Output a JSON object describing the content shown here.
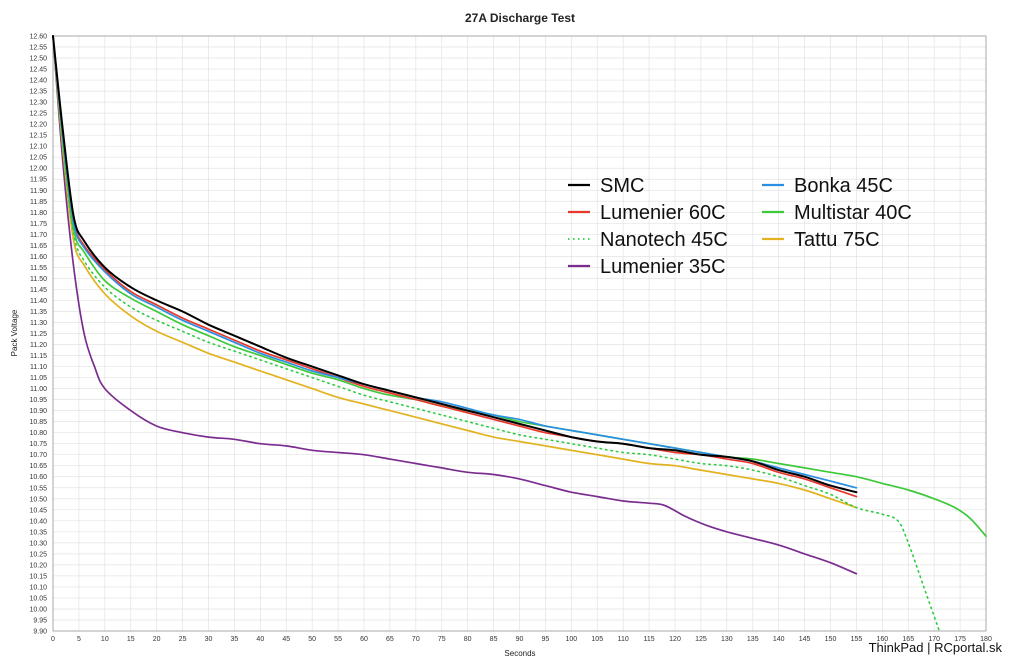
{
  "chart_data": {
    "type": "line",
    "title": "27A Discharge Test",
    "xlabel": "Seconds",
    "ylabel": "Pack Voltage",
    "xlim": [
      0,
      180
    ],
    "ylim": [
      9.9,
      12.6
    ],
    "x_ticks": [
      0,
      5,
      10,
      15,
      20,
      25,
      30,
      35,
      40,
      45,
      50,
      55,
      60,
      65,
      70,
      75,
      80,
      85,
      90,
      95,
      100,
      105,
      110,
      115,
      120,
      125,
      130,
      135,
      140,
      145,
      150,
      155,
      160,
      165,
      170,
      175,
      180
    ],
    "y_ticks": [
      "12.60",
      "12.55",
      "12.50",
      "12.45",
      "12.40",
      "12.35",
      "12.30",
      "12.25",
      "12.20",
      "12.15",
      "12.10",
      "12.05",
      "12.00",
      "11.95",
      "11.90",
      "11.85",
      "11.80",
      "11.75",
      "11.70",
      "11.65",
      "11.60",
      "11.55",
      "11.50",
      "11.45",
      "11.40",
      "11.35",
      "11.30",
      "11.25",
      "11.20",
      "11.15",
      "11.10",
      "11.05",
      "11.00",
      "10.95",
      "10.90",
      "10.85",
      "10.80",
      "10.75",
      "10.70",
      "10.65",
      "10.60",
      "10.55",
      "10.50",
      "10.45",
      "10.40",
      "10.35",
      "10.30",
      "10.25",
      "10.20",
      "10.15",
      "10.10",
      "10.05",
      "10.00",
      "9.95",
      "9.90"
    ],
    "grid": true,
    "legend_position": "top-right",
    "series": [
      {
        "name": "SMC",
        "color": "#000000",
        "dash": false,
        "points": [
          [
            0,
            12.6
          ],
          [
            2,
            12.15
          ],
          [
            4,
            11.78
          ],
          [
            6,
            11.67
          ],
          [
            10,
            11.55
          ],
          [
            15,
            11.46
          ],
          [
            20,
            11.4
          ],
          [
            25,
            11.35
          ],
          [
            30,
            11.29
          ],
          [
            35,
            11.24
          ],
          [
            40,
            11.19
          ],
          [
            45,
            11.14
          ],
          [
            50,
            11.1
          ],
          [
            55,
            11.06
          ],
          [
            60,
            11.02
          ],
          [
            65,
            10.99
          ],
          [
            70,
            10.96
          ],
          [
            75,
            10.93
          ],
          [
            80,
            10.9
          ],
          [
            85,
            10.87
          ],
          [
            90,
            10.84
          ],
          [
            95,
            10.81
          ],
          [
            100,
            10.78
          ],
          [
            105,
            10.76
          ],
          [
            110,
            10.75
          ],
          [
            115,
            10.73
          ],
          [
            120,
            10.72
          ],
          [
            125,
            10.7
          ],
          [
            130,
            10.69
          ],
          [
            135,
            10.67
          ],
          [
            140,
            10.63
          ],
          [
            145,
            10.6
          ],
          [
            150,
            10.56
          ],
          [
            155,
            10.53
          ]
        ]
      },
      {
        "name": "Lumenier 60C",
        "color": "#e8372c",
        "dash": false,
        "points": [
          [
            0,
            12.6
          ],
          [
            2,
            12.13
          ],
          [
            4,
            11.76
          ],
          [
            6,
            11.65
          ],
          [
            10,
            11.54
          ],
          [
            15,
            11.44
          ],
          [
            20,
            11.38
          ],
          [
            25,
            11.32
          ],
          [
            30,
            11.27
          ],
          [
            35,
            11.22
          ],
          [
            40,
            11.17
          ],
          [
            45,
            11.13
          ],
          [
            50,
            11.09
          ],
          [
            55,
            11.05
          ],
          [
            60,
            11.01
          ],
          [
            65,
            10.98
          ],
          [
            70,
            10.95
          ],
          [
            75,
            10.92
          ],
          [
            80,
            10.89
          ],
          [
            85,
            10.86
          ],
          [
            90,
            10.83
          ],
          [
            95,
            10.8
          ],
          [
            100,
            10.78
          ],
          [
            105,
            10.76
          ],
          [
            110,
            10.75
          ],
          [
            115,
            10.73
          ],
          [
            120,
            10.71
          ],
          [
            125,
            10.7
          ],
          [
            130,
            10.68
          ],
          [
            135,
            10.66
          ],
          [
            140,
            10.62
          ],
          [
            145,
            10.59
          ],
          [
            150,
            10.55
          ],
          [
            155,
            10.51
          ]
        ]
      },
      {
        "name": "Nanotech 45C",
        "color": "#2ecc40",
        "dash": true,
        "points": [
          [
            0,
            12.6
          ],
          [
            2,
            12.08
          ],
          [
            4,
            11.7
          ],
          [
            6,
            11.58
          ],
          [
            10,
            11.46
          ],
          [
            15,
            11.37
          ],
          [
            20,
            11.31
          ],
          [
            25,
            11.26
          ],
          [
            30,
            11.21
          ],
          [
            35,
            11.17
          ],
          [
            40,
            11.13
          ],
          [
            45,
            11.09
          ],
          [
            50,
            11.05
          ],
          [
            55,
            11.01
          ],
          [
            60,
            10.97
          ],
          [
            65,
            10.94
          ],
          [
            70,
            10.91
          ],
          [
            75,
            10.88
          ],
          [
            80,
            10.85
          ],
          [
            85,
            10.82
          ],
          [
            90,
            10.79
          ],
          [
            95,
            10.77
          ],
          [
            100,
            10.75
          ],
          [
            105,
            10.73
          ],
          [
            110,
            10.71
          ],
          [
            115,
            10.7
          ],
          [
            120,
            10.68
          ],
          [
            125,
            10.66
          ],
          [
            130,
            10.65
          ],
          [
            135,
            10.63
          ],
          [
            140,
            10.6
          ],
          [
            145,
            10.56
          ],
          [
            150,
            10.52
          ],
          [
            155,
            10.46
          ],
          [
            160,
            10.43
          ],
          [
            163,
            10.4
          ],
          [
            165,
            10.3
          ],
          [
            168,
            10.1
          ],
          [
            171,
            9.9
          ]
        ]
      },
      {
        "name": "Lumenier 35C",
        "color": "#7a2d8f",
        "dash": false,
        "points": [
          [
            0,
            12.6
          ],
          [
            2,
            12.0
          ],
          [
            4,
            11.55
          ],
          [
            6,
            11.25
          ],
          [
            8,
            11.1
          ],
          [
            10,
            11.0
          ],
          [
            15,
            10.9
          ],
          [
            20,
            10.83
          ],
          [
            25,
            10.8
          ],
          [
            30,
            10.78
          ],
          [
            35,
            10.77
          ],
          [
            40,
            10.75
          ],
          [
            45,
            10.74
          ],
          [
            50,
            10.72
          ],
          [
            55,
            10.71
          ],
          [
            60,
            10.7
          ],
          [
            65,
            10.68
          ],
          [
            70,
            10.66
          ],
          [
            75,
            10.64
          ],
          [
            80,
            10.62
          ],
          [
            85,
            10.61
          ],
          [
            90,
            10.59
          ],
          [
            95,
            10.56
          ],
          [
            100,
            10.53
          ],
          [
            105,
            10.51
          ],
          [
            110,
            10.49
          ],
          [
            115,
            10.48
          ],
          [
            118,
            10.47
          ],
          [
            122,
            10.42
          ],
          [
            126,
            10.38
          ],
          [
            130,
            10.35
          ],
          [
            135,
            10.32
          ],
          [
            140,
            10.29
          ],
          [
            145,
            10.25
          ],
          [
            150,
            10.21
          ],
          [
            155,
            10.16
          ]
        ]
      },
      {
        "name": "Bonka 45C",
        "color": "#2a8fe0",
        "dash": false,
        "points": [
          [
            0,
            12.6
          ],
          [
            2,
            12.12
          ],
          [
            4,
            11.75
          ],
          [
            6,
            11.64
          ],
          [
            10,
            11.53
          ],
          [
            15,
            11.43
          ],
          [
            20,
            11.37
          ],
          [
            25,
            11.31
          ],
          [
            30,
            11.26
          ],
          [
            35,
            11.21
          ],
          [
            40,
            11.16
          ],
          [
            45,
            11.12
          ],
          [
            50,
            11.08
          ],
          [
            55,
            11.05
          ],
          [
            60,
            11.02
          ],
          [
            65,
            10.99
          ],
          [
            70,
            10.96
          ],
          [
            75,
            10.94
          ],
          [
            80,
            10.91
          ],
          [
            85,
            10.88
          ],
          [
            90,
            10.86
          ],
          [
            95,
            10.83
          ],
          [
            100,
            10.81
          ],
          [
            105,
            10.79
          ],
          [
            110,
            10.77
          ],
          [
            115,
            10.75
          ],
          [
            120,
            10.73
          ],
          [
            125,
            10.71
          ],
          [
            130,
            10.69
          ],
          [
            135,
            10.67
          ],
          [
            140,
            10.64
          ],
          [
            145,
            10.61
          ],
          [
            150,
            10.58
          ],
          [
            155,
            10.55
          ]
        ]
      },
      {
        "name": "Multistar 40C",
        "color": "#3dc93a",
        "dash": false,
        "points": [
          [
            0,
            12.6
          ],
          [
            2,
            12.1
          ],
          [
            4,
            11.72
          ],
          [
            6,
            11.62
          ],
          [
            10,
            11.49
          ],
          [
            15,
            11.41
          ],
          [
            20,
            11.35
          ],
          [
            25,
            11.29
          ],
          [
            30,
            11.24
          ],
          [
            35,
            11.19
          ],
          [
            40,
            11.15
          ],
          [
            45,
            11.11
          ],
          [
            50,
            11.07
          ],
          [
            55,
            11.04
          ],
          [
            60,
            11.0
          ],
          [
            65,
            10.97
          ],
          [
            70,
            10.95
          ],
          [
            75,
            10.92
          ],
          [
            80,
            10.9
          ],
          [
            85,
            10.88
          ],
          [
            90,
            10.85
          ],
          [
            95,
            10.83
          ],
          [
            100,
            10.81
          ],
          [
            105,
            10.79
          ],
          [
            110,
            10.77
          ],
          [
            115,
            10.75
          ],
          [
            120,
            10.73
          ],
          [
            125,
            10.71
          ],
          [
            130,
            10.69
          ],
          [
            135,
            10.68
          ],
          [
            140,
            10.66
          ],
          [
            145,
            10.64
          ],
          [
            150,
            10.62
          ],
          [
            155,
            10.6
          ],
          [
            160,
            10.57
          ],
          [
            165,
            10.54
          ],
          [
            170,
            10.5
          ],
          [
            174,
            10.46
          ],
          [
            177,
            10.41
          ],
          [
            180,
            10.33
          ]
        ]
      },
      {
        "name": "Tattu 75C",
        "color": "#e2b21f",
        "dash": false,
        "points": [
          [
            0,
            12.6
          ],
          [
            2,
            12.06
          ],
          [
            4,
            11.67
          ],
          [
            6,
            11.56
          ],
          [
            10,
            11.43
          ],
          [
            15,
            11.33
          ],
          [
            20,
            11.26
          ],
          [
            25,
            11.21
          ],
          [
            30,
            11.16
          ],
          [
            35,
            11.12
          ],
          [
            40,
            11.08
          ],
          [
            45,
            11.04
          ],
          [
            50,
            11.0
          ],
          [
            55,
            10.96
          ],
          [
            60,
            10.93
          ],
          [
            65,
            10.9
          ],
          [
            70,
            10.87
          ],
          [
            75,
            10.84
          ],
          [
            80,
            10.81
          ],
          [
            85,
            10.78
          ],
          [
            90,
            10.76
          ],
          [
            95,
            10.74
          ],
          [
            100,
            10.72
          ],
          [
            105,
            10.7
          ],
          [
            110,
            10.68
          ],
          [
            115,
            10.66
          ],
          [
            120,
            10.65
          ],
          [
            125,
            10.63
          ],
          [
            130,
            10.61
          ],
          [
            135,
            10.59
          ],
          [
            140,
            10.57
          ],
          [
            145,
            10.54
          ],
          [
            150,
            10.5
          ],
          [
            155,
            10.46
          ]
        ]
      }
    ]
  },
  "watermark": "ThinkPad | RCportal.sk"
}
